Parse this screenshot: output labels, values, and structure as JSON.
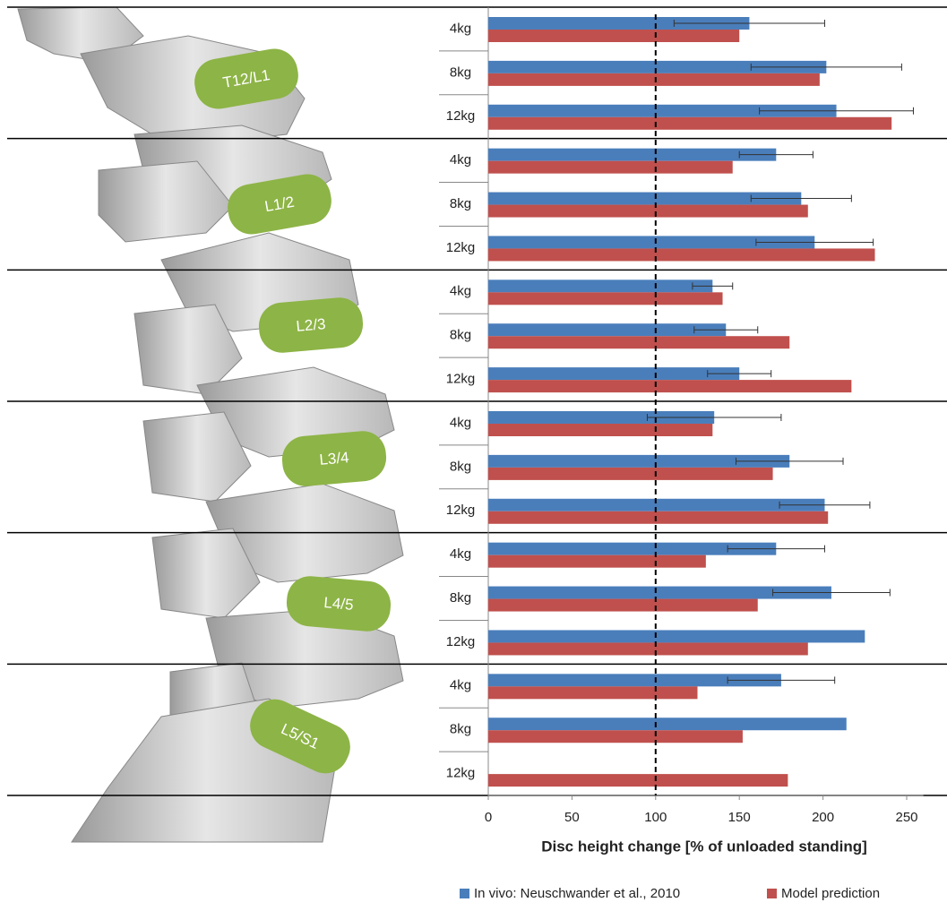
{
  "chart_data": {
    "type": "bar",
    "xlabel": "Disc height change [% of unloaded standing]",
    "groups": [
      "T12/L1",
      "L1/2",
      "L2/3",
      "L3/4",
      "L4/5",
      "L5/S1"
    ],
    "categories": [
      "4kg",
      "8kg",
      "12kg",
      "4kg",
      "8kg",
      "12kg",
      "4kg",
      "8kg",
      "12kg",
      "4kg",
      "8kg",
      "12kg",
      "4kg",
      "8kg",
      "12kg",
      "4kg",
      "8kg",
      "12kg"
    ],
    "series": [
      {
        "name": "In vivo: Neuschwander et al., 2010",
        "color": "#4a7ebb",
        "values": [
          156,
          202,
          208,
          172,
          187,
          195,
          134,
          142,
          150,
          135,
          180,
          201,
          172,
          205,
          225,
          175,
          214,
          null
        ],
        "errors": [
          45,
          45,
          46,
          22,
          30,
          35,
          12,
          19,
          19,
          40,
          32,
          27,
          29,
          35,
          null,
          32,
          null,
          null
        ]
      },
      {
        "name": "Model prediction",
        "color": "#c0504d",
        "values": [
          150,
          198,
          241,
          146,
          191,
          231,
          140,
          180,
          217,
          134,
          170,
          203,
          130,
          161,
          191,
          125,
          152,
          179
        ]
      }
    ],
    "xlim": [
      0,
      260
    ],
    "xticks": [
      0,
      50,
      100,
      150,
      200,
      250
    ],
    "reference_line": 100
  }
}
